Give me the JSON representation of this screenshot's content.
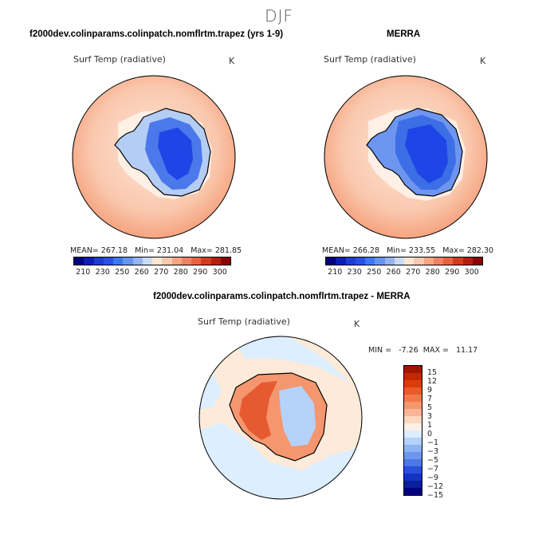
{
  "season": "DJF",
  "panels": [
    {
      "title": "f2000dev.colinparams.colinpatch.nomflrtm.trapez (yrs 1-9)",
      "variable": "Surf Temp (radiative)",
      "units": "K",
      "stats": "MEAN= 267.18   Min= 231.04   Max= 281.85"
    },
    {
      "title": "MERRA",
      "variable": "Surf Temp (radiative)",
      "units": "K",
      "stats": "MEAN= 266.28   Min= 233.55   Max= 282.30"
    },
    {
      "title": "f2000dev.colinparams.colinpatch.nomflrtm.trapez - MERRA",
      "variable": "Surf Temp (radiative)",
      "units": "K",
      "stats": "MIN =   -7.26  MAX =   11.17"
    }
  ],
  "abs_colorbar": {
    "colors": [
      "#000080",
      "#0a1eb4",
      "#1e3cd2",
      "#2850e6",
      "#3c78f0",
      "#6496f0",
      "#96b4f0",
      "#c8dcf5",
      "#ffe6d2",
      "#fac8af",
      "#f5a582",
      "#f08264",
      "#e6643c",
      "#d23c1e",
      "#b41e0a",
      "#8c0000"
    ],
    "ticks": [
      "210",
      "230",
      "250",
      "260",
      "270",
      "280",
      "290",
      "300"
    ]
  },
  "diff_colorbar": {
    "colors": [
      "#a01400",
      "#c32800",
      "#dc3c0a",
      "#eb5a28",
      "#f5784b",
      "#f5966e",
      "#fab496",
      "#fdd7be",
      "#fff0e6",
      "#dceeff",
      "#b4d2fa",
      "#8cb4f5",
      "#6e96f0",
      "#4b78eb",
      "#2850dc",
      "#1432c3",
      "#0a1ea0",
      "#000080"
    ],
    "ticks": [
      "15",
      "12",
      "9",
      "7",
      "5",
      "3",
      "1",
      "0",
      "−1",
      "−3",
      "−5",
      "−7",
      "−9",
      "−12",
      "−15"
    ]
  }
}
